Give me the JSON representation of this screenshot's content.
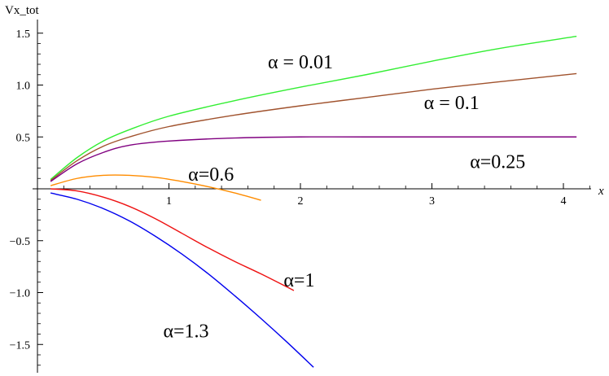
{
  "chart_data": {
    "type": "line",
    "ylabel": "Vx_tot",
    "xlabel": "x",
    "xlim": [
      0,
      4.3
    ],
    "ylim": [
      -1.8,
      1.55
    ],
    "xticks": [
      {
        "v": 1,
        "label": "1"
      },
      {
        "v": 2,
        "label": "2"
      },
      {
        "v": 3,
        "label": "3"
      },
      {
        "v": 4,
        "label": "4"
      }
    ],
    "yticks": [
      {
        "v": 1.5,
        "label": "1.5"
      },
      {
        "v": 1.0,
        "label": "1.0"
      },
      {
        "v": 0.5,
        "label": "0.5"
      },
      {
        "v": -0.5,
        "label": "−0.5"
      },
      {
        "v": -1.0,
        "label": "−1.0"
      },
      {
        "v": -1.5,
        "label": "−1.5"
      }
    ],
    "grid": false,
    "series": [
      {
        "color": "#33ee33",
        "x": [
          0.1,
          0.3,
          0.5,
          0.7,
          1.0,
          1.5,
          2.0,
          2.5,
          3.0,
          3.5,
          4.1
        ],
        "y": [
          0.09,
          0.3,
          0.46,
          0.57,
          0.7,
          0.85,
          0.98,
          1.1,
          1.23,
          1.35,
          1.47
        ]
      },
      {
        "color": "#a0522d",
        "x": [
          0.1,
          0.3,
          0.5,
          0.7,
          1.0,
          1.5,
          2.0,
          2.5,
          3.0,
          3.5,
          4.1
        ],
        "y": [
          0.08,
          0.27,
          0.41,
          0.5,
          0.6,
          0.71,
          0.8,
          0.88,
          0.96,
          1.03,
          1.11
        ]
      },
      {
        "color": "#800080",
        "x": [
          0.1,
          0.3,
          0.5,
          0.7,
          1.0,
          1.5,
          2.0,
          2.5,
          3.0,
          4.1
        ],
        "y": [
          0.07,
          0.24,
          0.35,
          0.42,
          0.46,
          0.49,
          0.5,
          0.5,
          0.5,
          0.5
        ]
      },
      {
        "color": "#ff8c00",
        "x": [
          0.1,
          0.3,
          0.5,
          0.7,
          0.9,
          1.1,
          1.3,
          1.5,
          1.7
        ],
        "y": [
          0.03,
          0.1,
          0.13,
          0.13,
          0.11,
          0.07,
          0.02,
          -0.04,
          -0.11
        ]
      },
      {
        "color": "#ee1111",
        "x": [
          0.1,
          0.3,
          0.5,
          0.7,
          0.9,
          1.1,
          1.3,
          1.5,
          1.7,
          1.95
        ],
        "y": [
          0.0,
          -0.02,
          -0.08,
          -0.17,
          -0.29,
          -0.43,
          -0.57,
          -0.7,
          -0.82,
          -0.98
        ]
      },
      {
        "color": "#0000ee",
        "x": [
          0.1,
          0.3,
          0.5,
          0.7,
          0.9,
          1.1,
          1.3,
          1.5,
          1.7,
          1.9,
          2.1
        ],
        "y": [
          -0.04,
          -0.1,
          -0.19,
          -0.31,
          -0.46,
          -0.63,
          -0.82,
          -1.03,
          -1.25,
          -1.48,
          -1.72
        ]
      }
    ],
    "annotations": [
      {
        "text": "α = 0.01",
        "x": 2.0,
        "y": 1.16
      },
      {
        "text": "α = 0.1",
        "x": 3.15,
        "y": 0.77
      },
      {
        "text": "α=0.25",
        "x": 3.5,
        "y": 0.2
      },
      {
        "text": "α=0.6",
        "x": 1.32,
        "y": 0.08
      },
      {
        "text": "α=1",
        "x": 1.99,
        "y": -0.94
      },
      {
        "text": "α=1.3",
        "x": 1.13,
        "y": -1.43
      }
    ]
  }
}
